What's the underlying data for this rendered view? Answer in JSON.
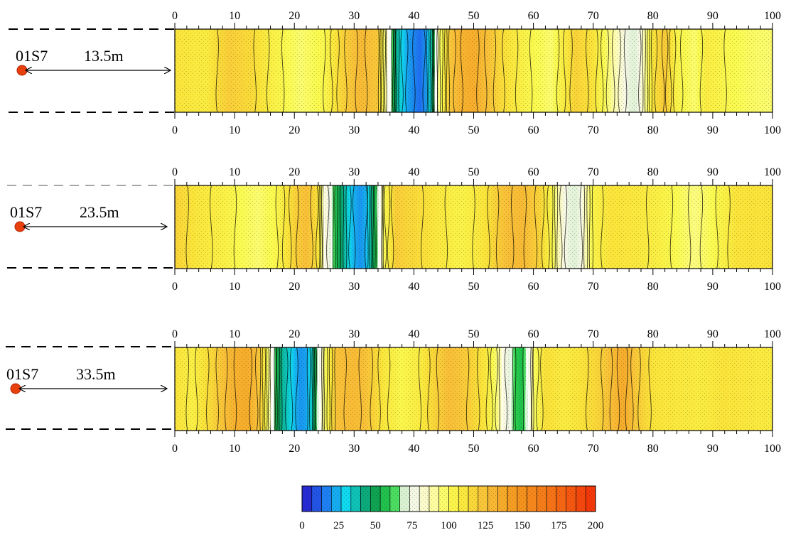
{
  "chart_data": {
    "type": "heatmap",
    "x_range": [
      0,
      100
    ],
    "x_ticks": [
      "0",
      "10",
      "20",
      "30",
      "40",
      "50",
      "60",
      "70",
      "80",
      "90",
      "100"
    ],
    "panels": [
      {
        "label": "01S7",
        "distance": "13.5m",
        "profile": [
          [
            0,
            112
          ],
          [
            5,
            108
          ],
          [
            9,
            120
          ],
          [
            13,
            115
          ],
          [
            17,
            104
          ],
          [
            21,
            96
          ],
          [
            25,
            102
          ],
          [
            28,
            118
          ],
          [
            31,
            128
          ],
          [
            34,
            122
          ],
          [
            36,
            75
          ],
          [
            37,
            42
          ],
          [
            38,
            30
          ],
          [
            39,
            22
          ],
          [
            40,
            18
          ],
          [
            41,
            14
          ],
          [
            42,
            20
          ],
          [
            43,
            40
          ],
          [
            44,
            90
          ],
          [
            46,
            122
          ],
          [
            48,
            132
          ],
          [
            50,
            135
          ],
          [
            52,
            126
          ],
          [
            55,
            114
          ],
          [
            59,
            103
          ],
          [
            63,
            96
          ],
          [
            67,
            118
          ],
          [
            70,
            112
          ],
          [
            73,
            92
          ],
          [
            75,
            80
          ],
          [
            76,
            74
          ],
          [
            77,
            72
          ],
          [
            78,
            80
          ],
          [
            80,
            112
          ],
          [
            82,
            122
          ],
          [
            84,
            104
          ],
          [
            87,
            96
          ],
          [
            89,
            108
          ],
          [
            92,
            102
          ],
          [
            96,
            98
          ],
          [
            100,
            96
          ]
        ]
      },
      {
        "label": "01S7",
        "distance": "23.5m",
        "profile": [
          [
            0,
            118
          ],
          [
            4,
            110
          ],
          [
            8,
            106
          ],
          [
            11,
            100
          ],
          [
            14,
            96
          ],
          [
            17,
            102
          ],
          [
            20,
            118
          ],
          [
            22,
            126
          ],
          [
            24,
            112
          ],
          [
            25,
            84
          ],
          [
            26,
            74
          ],
          [
            27,
            56
          ],
          [
            28,
            44
          ],
          [
            29,
            32
          ],
          [
            30,
            24
          ],
          [
            31,
            20
          ],
          [
            32,
            24
          ],
          [
            33,
            44
          ],
          [
            34,
            66
          ],
          [
            35,
            100
          ],
          [
            37,
            120
          ],
          [
            40,
            116
          ],
          [
            44,
            110
          ],
          [
            48,
            104
          ],
          [
            52,
            112
          ],
          [
            55,
            124
          ],
          [
            58,
            128
          ],
          [
            61,
            118
          ],
          [
            63,
            104
          ],
          [
            64,
            90
          ],
          [
            65,
            80
          ],
          [
            66,
            74
          ],
          [
            67,
            72
          ],
          [
            68,
            78
          ],
          [
            70,
            104
          ],
          [
            73,
            112
          ],
          [
            77,
            110
          ],
          [
            81,
            106
          ],
          [
            84,
            100
          ],
          [
            87,
            94
          ],
          [
            90,
            100
          ],
          [
            94,
            112
          ],
          [
            100,
            112
          ]
        ]
      },
      {
        "label": "01S7",
        "distance": "33.5m",
        "profile": [
          [
            0,
            112
          ],
          [
            3,
            106
          ],
          [
            6,
            116
          ],
          [
            8,
            124
          ],
          [
            10,
            132
          ],
          [
            12,
            136
          ],
          [
            14,
            124
          ],
          [
            15,
            108
          ],
          [
            16,
            88
          ],
          [
            17,
            54
          ],
          [
            18,
            40
          ],
          [
            19,
            34
          ],
          [
            20,
            26
          ],
          [
            21,
            20
          ],
          [
            22,
            22
          ],
          [
            23,
            36
          ],
          [
            24,
            70
          ],
          [
            25,
            96
          ],
          [
            27,
            124
          ],
          [
            30,
            128
          ],
          [
            32,
            124
          ],
          [
            35,
            110
          ],
          [
            38,
            102
          ],
          [
            41,
            108
          ],
          [
            44,
            120
          ],
          [
            46,
            126
          ],
          [
            49,
            120
          ],
          [
            52,
            110
          ],
          [
            54,
            94
          ],
          [
            55,
            80
          ],
          [
            56,
            74
          ],
          [
            57,
            60
          ],
          [
            58,
            56
          ],
          [
            59,
            70
          ],
          [
            60,
            96
          ],
          [
            62,
            114
          ],
          [
            65,
            108
          ],
          [
            68,
            112
          ],
          [
            71,
            118
          ],
          [
            73,
            126
          ],
          [
            75,
            136
          ],
          [
            77,
            122
          ],
          [
            80,
            112
          ],
          [
            84,
            110
          ],
          [
            88,
            108
          ],
          [
            92,
            112
          ],
          [
            96,
            110
          ],
          [
            100,
            108
          ]
        ]
      }
    ],
    "colorbar": {
      "ticks": [
        "0",
        "25",
        "50",
        "75",
        "100",
        "125",
        "150",
        "175",
        "200"
      ],
      "range": [
        0,
        200
      ],
      "stops": [
        [
          0,
          "#2a16c8"
        ],
        [
          14,
          "#1f6df0"
        ],
        [
          30,
          "#10d8ee"
        ],
        [
          48,
          "#0a9a52"
        ],
        [
          62,
          "#2fd84a"
        ],
        [
          70,
          "#d8f0d0"
        ],
        [
          78,
          "#f8f8e8"
        ],
        [
          88,
          "#fdfcb0"
        ],
        [
          100,
          "#fafa50"
        ],
        [
          112,
          "#fae43a"
        ],
        [
          125,
          "#f8c038"
        ],
        [
          145,
          "#f59a20"
        ],
        [
          175,
          "#f56a15"
        ],
        [
          200,
          "#f43008"
        ]
      ],
      "bands": 30
    },
    "colors": {
      "source_marker": "#e8400c",
      "contour": "#000000"
    }
  }
}
